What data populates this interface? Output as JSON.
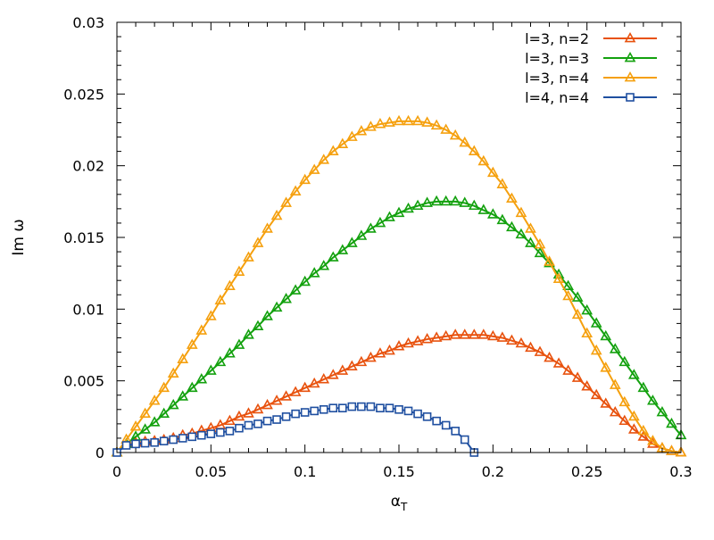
{
  "chart_data": {
    "type": "line",
    "title": "",
    "xlabel": "α",
    "xlabel_subscript": "T",
    "ylabel": "Im ω",
    "xlim": [
      0,
      0.3
    ],
    "ylim": [
      0,
      0.03
    ],
    "x_ticks": [
      0,
      0.05,
      0.1,
      0.15,
      0.2,
      0.25,
      0.3
    ],
    "x_tick_labels": [
      "0",
      "0.05",
      "0.1",
      "0.15",
      "0.2",
      "0.25",
      "0.3"
    ],
    "y_ticks": [
      0,
      0.005,
      0.01,
      0.015,
      0.02,
      0.025,
      0.03
    ],
    "y_tick_labels": [
      "0",
      "0.005",
      "0.01",
      "0.015",
      "0.02",
      "0.025",
      "0.03"
    ],
    "grid": false,
    "legend_position": "top-right",
    "series": [
      {
        "name": "l=3, n=2",
        "color": "#e8520e",
        "marker": "triangle",
        "x": [
          0,
          0.005,
          0.01,
          0.015,
          0.02,
          0.025,
          0.03,
          0.035,
          0.04,
          0.045,
          0.05,
          0.055,
          0.06,
          0.065,
          0.07,
          0.075,
          0.08,
          0.085,
          0.09,
          0.095,
          0.1,
          0.105,
          0.11,
          0.115,
          0.12,
          0.125,
          0.13,
          0.135,
          0.14,
          0.145,
          0.15,
          0.155,
          0.16,
          0.165,
          0.17,
          0.175,
          0.18,
          0.185,
          0.19,
          0.195,
          0.2,
          0.205,
          0.21,
          0.215,
          0.22,
          0.225,
          0.23,
          0.235,
          0.24,
          0.245,
          0.25,
          0.255,
          0.26,
          0.265,
          0.27,
          0.275,
          0.28,
          0.285,
          0.29,
          0.295,
          0.3
        ],
        "values": [
          0,
          0.0006,
          0.00068,
          0.00076,
          0.0008,
          0.00088,
          0.001,
          0.0012,
          0.00132,
          0.00152,
          0.0017,
          0.0019,
          0.0022,
          0.0025,
          0.00272,
          0.003,
          0.0033,
          0.0036,
          0.0039,
          0.0042,
          0.0045,
          0.0048,
          0.0051,
          0.0054,
          0.0057,
          0.006,
          0.0063,
          0.0066,
          0.0069,
          0.0071,
          0.0074,
          0.0076,
          0.00775,
          0.0079,
          0.008,
          0.0081,
          0.0082,
          0.0082,
          0.0082,
          0.0082,
          0.0081,
          0.008,
          0.0078,
          0.0076,
          0.0073,
          0.007,
          0.0066,
          0.0062,
          0.0057,
          0.0052,
          0.0046,
          0.004,
          0.0034,
          0.0028,
          0.0022,
          0.0016,
          0.0011,
          0.0006,
          0.0003,
          0.0001,
          0
        ]
      },
      {
        "name": "l=3, n=3",
        "color": "#13a10e",
        "marker": "triangle",
        "x": [
          0,
          0.005,
          0.01,
          0.015,
          0.02,
          0.025,
          0.03,
          0.035,
          0.04,
          0.045,
          0.05,
          0.055,
          0.06,
          0.065,
          0.07,
          0.075,
          0.08,
          0.085,
          0.09,
          0.095,
          0.1,
          0.105,
          0.11,
          0.115,
          0.12,
          0.125,
          0.13,
          0.135,
          0.14,
          0.145,
          0.15,
          0.155,
          0.16,
          0.165,
          0.17,
          0.175,
          0.18,
          0.185,
          0.19,
          0.195,
          0.2,
          0.205,
          0.21,
          0.215,
          0.22,
          0.225,
          0.23,
          0.235,
          0.24,
          0.245,
          0.25,
          0.255,
          0.26,
          0.265,
          0.27,
          0.275,
          0.28,
          0.285,
          0.29,
          0.295,
          0.3
        ],
        "values": [
          0,
          0.0006,
          0.0011,
          0.0016,
          0.0021,
          0.0027,
          0.0033,
          0.0039,
          0.0045,
          0.0051,
          0.0057,
          0.0063,
          0.0069,
          0.0075,
          0.0082,
          0.0088,
          0.0095,
          0.0101,
          0.0107,
          0.0113,
          0.0119,
          0.0125,
          0.013,
          0.0136,
          0.0141,
          0.0146,
          0.0151,
          0.0156,
          0.016,
          0.0164,
          0.0167,
          0.017,
          0.0172,
          0.0174,
          0.0175,
          0.0175,
          0.0175,
          0.0174,
          0.0172,
          0.0169,
          0.0166,
          0.0162,
          0.0157,
          0.0152,
          0.0146,
          0.0139,
          0.0132,
          0.0124,
          0.0116,
          0.0108,
          0.0099,
          0.009,
          0.0081,
          0.0072,
          0.0063,
          0.0054,
          0.0045,
          0.0036,
          0.0028,
          0.002,
          0.0012
        ]
      },
      {
        "name": "l=3, n=4",
        "color": "#f5a00e",
        "marker": "triangle",
        "x": [
          0,
          0.005,
          0.01,
          0.015,
          0.02,
          0.025,
          0.03,
          0.035,
          0.04,
          0.045,
          0.05,
          0.055,
          0.06,
          0.065,
          0.07,
          0.075,
          0.08,
          0.085,
          0.09,
          0.095,
          0.1,
          0.105,
          0.11,
          0.115,
          0.12,
          0.125,
          0.13,
          0.135,
          0.14,
          0.145,
          0.15,
          0.155,
          0.16,
          0.165,
          0.17,
          0.175,
          0.18,
          0.185,
          0.19,
          0.195,
          0.2,
          0.205,
          0.21,
          0.215,
          0.22,
          0.225,
          0.23,
          0.235,
          0.24,
          0.245,
          0.25,
          0.255,
          0.26,
          0.265,
          0.27,
          0.275,
          0.28,
          0.285,
          0.29,
          0.295,
          0.3
        ],
        "values": [
          0,
          0.0009,
          0.0018,
          0.0027,
          0.0036,
          0.0045,
          0.0055,
          0.0065,
          0.0075,
          0.0085,
          0.0095,
          0.0106,
          0.0116,
          0.0126,
          0.0136,
          0.0146,
          0.0156,
          0.0165,
          0.0174,
          0.0182,
          0.019,
          0.0197,
          0.0204,
          0.021,
          0.0215,
          0.022,
          0.0224,
          0.0227,
          0.0229,
          0.023,
          0.0231,
          0.0231,
          0.0231,
          0.023,
          0.0228,
          0.0225,
          0.0221,
          0.0216,
          0.021,
          0.0203,
          0.0195,
          0.0187,
          0.0177,
          0.0167,
          0.0156,
          0.0145,
          0.0133,
          0.0121,
          0.0109,
          0.0096,
          0.0083,
          0.0071,
          0.0059,
          0.0047,
          0.0035,
          0.0025,
          0.0015,
          0.0008,
          0.0003,
          0.0001,
          0
        ]
      },
      {
        "name": "l=4, n=4",
        "color": "#1f4fa0",
        "marker": "square",
        "x": [
          0,
          0.005,
          0.01,
          0.015,
          0.02,
          0.025,
          0.03,
          0.035,
          0.04,
          0.045,
          0.05,
          0.055,
          0.06,
          0.065,
          0.07,
          0.075,
          0.08,
          0.085,
          0.09,
          0.095,
          0.1,
          0.105,
          0.11,
          0.115,
          0.12,
          0.125,
          0.13,
          0.135,
          0.14,
          0.145,
          0.15,
          0.155,
          0.16,
          0.165,
          0.17,
          0.175,
          0.18,
          0.185,
          0.19
        ],
        "values": [
          0,
          0.0005,
          0.0006,
          0.00065,
          0.0007,
          0.0008,
          0.0009,
          0.001,
          0.0011,
          0.0012,
          0.0013,
          0.0014,
          0.0015,
          0.0017,
          0.0019,
          0.002,
          0.0022,
          0.0023,
          0.0025,
          0.0027,
          0.0028,
          0.0029,
          0.003,
          0.0031,
          0.0031,
          0.0032,
          0.0032,
          0.0032,
          0.0031,
          0.0031,
          0.003,
          0.0029,
          0.0027,
          0.0025,
          0.0022,
          0.0019,
          0.0015,
          0.0009,
          0
        ]
      }
    ]
  }
}
